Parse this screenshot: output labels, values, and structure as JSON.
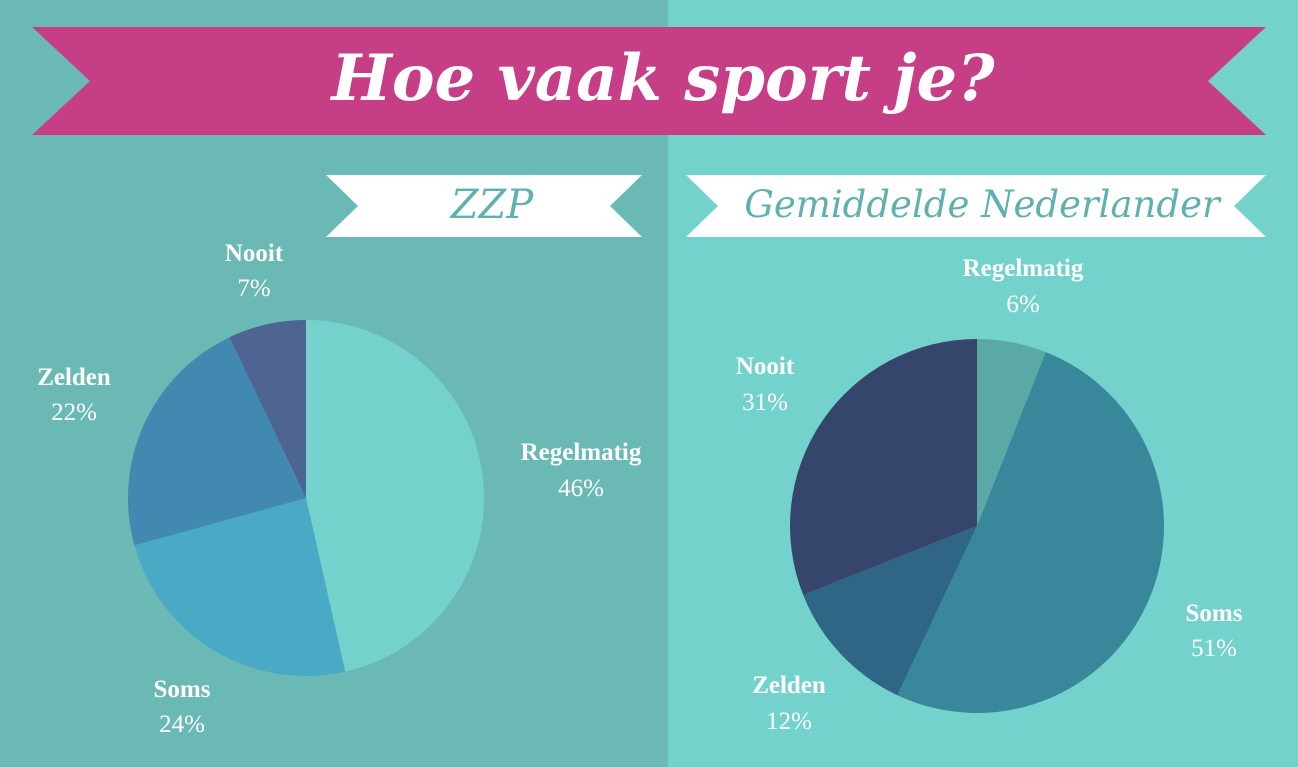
{
  "title": "Hoe vaak sport je?",
  "colors": {
    "left_bg": "#6bb9b5",
    "right_bg": "#74d2cd",
    "banner": "#c63f86",
    "ribbon": "#ffffff",
    "subtitle_text": "#5fb0ae"
  },
  "chart_data": [
    {
      "type": "pie",
      "title": "ZZP",
      "categories": [
        "Regelmatig",
        "Soms",
        "Zelden",
        "Nooit"
      ],
      "values": [
        46,
        24,
        22,
        7
      ],
      "value_labels": [
        "46%",
        "24%",
        "22%",
        "7%"
      ],
      "colors": [
        "#74d2cd",
        "#4aa9c4",
        "#4289b1",
        "#4e6493"
      ]
    },
    {
      "type": "pie",
      "title": "Gemiddelde Nederlander",
      "categories": [
        "Regelmatig",
        "Soms",
        "Zelden",
        "Nooit"
      ],
      "values": [
        6,
        51,
        12,
        31
      ],
      "value_labels": [
        "6%",
        "51%",
        "12%",
        "31%"
      ],
      "colors": [
        "#5aa9a5",
        "#38879a",
        "#2f6585",
        "#36456c"
      ]
    }
  ]
}
